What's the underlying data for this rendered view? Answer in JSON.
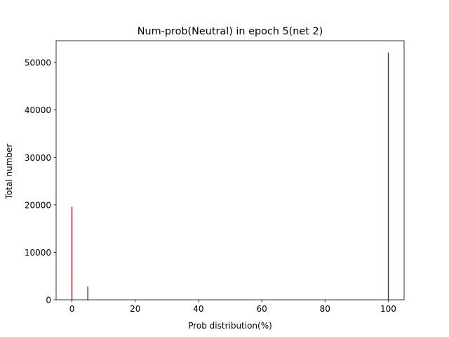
{
  "chart_data": {
    "type": "bar",
    "title": "Num-prob(Neutral) in epoch 5(net 2)",
    "xlabel": "Prob distribution(%)",
    "ylabel": "Total number",
    "xlim": [
      -5,
      105
    ],
    "ylim": [
      0,
      54600
    ],
    "xticks": [
      0,
      20,
      40,
      60,
      80,
      100
    ],
    "yticks": [
      0,
      10000,
      20000,
      30000,
      40000,
      50000
    ],
    "bar_color": "#8b0000",
    "bars": [
      {
        "x": 0,
        "value": 19600
      },
      {
        "x": 5,
        "value": 2800
      },
      {
        "x": 100,
        "value": 52100
      }
    ],
    "grid": false,
    "legend": "none"
  }
}
